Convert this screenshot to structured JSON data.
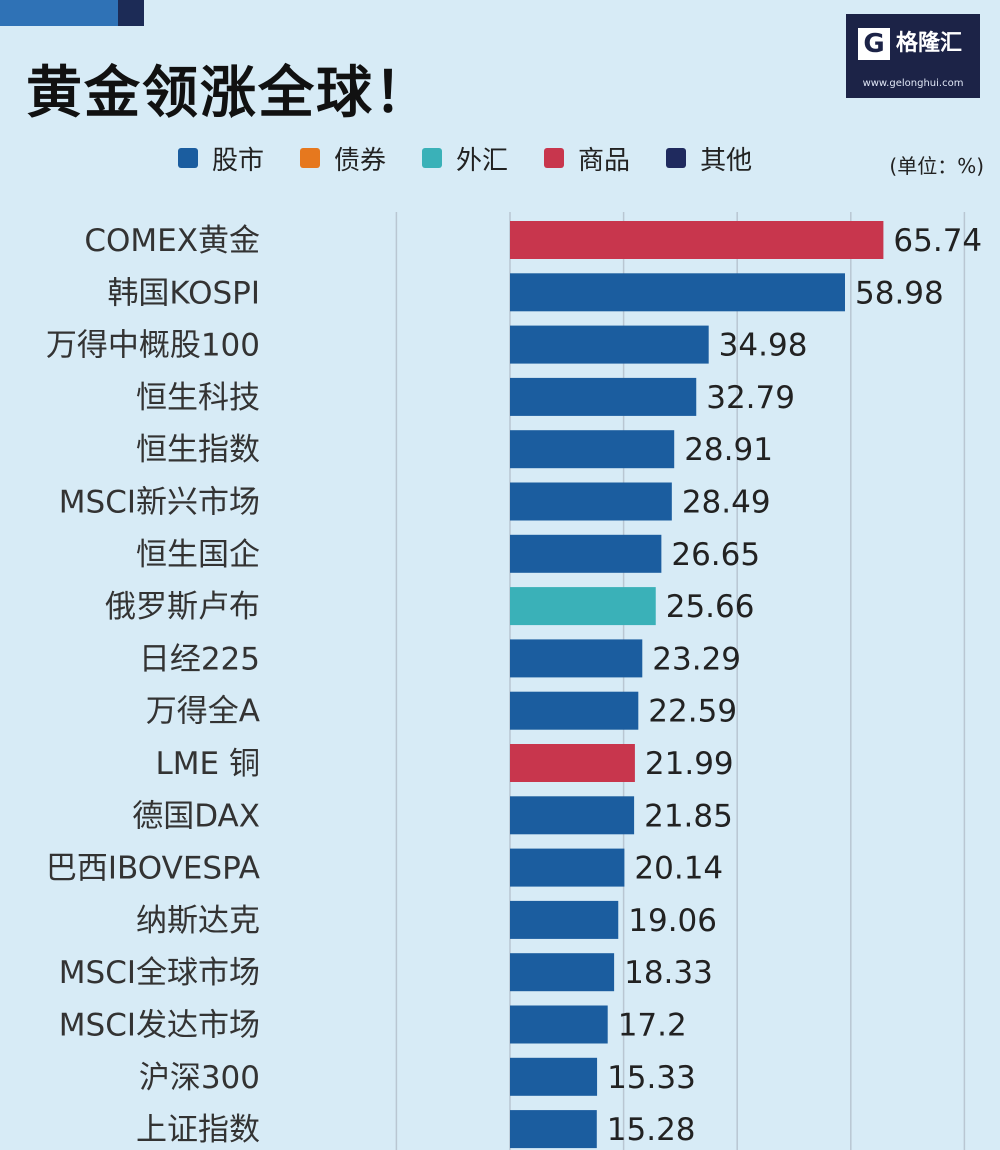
{
  "title": "黄金领涨全球！",
  "logo": {
    "mark": "G",
    "name": "格隆汇",
    "url": "www.gelonghui.com"
  },
  "unit": "(单位：%)",
  "colors": {
    "股市": "#1b5d9f",
    "债券": "#e6781e",
    "外汇": "#3ab1b8",
    "商品": "#c8364d",
    "其他": "#1f2a5e"
  },
  "legend": [
    {
      "label": "股市",
      "color": "#1b5d9f"
    },
    {
      "label": "债券",
      "color": "#e6781e"
    },
    {
      "label": "外汇",
      "color": "#3ab1b8"
    },
    {
      "label": "商品",
      "color": "#c8364d"
    },
    {
      "label": "其他",
      "color": "#1f2a5e"
    }
  ],
  "chart_data": {
    "type": "bar",
    "orientation": "horizontal",
    "title": "黄金领涨全球！",
    "unit": "%",
    "categories": [
      "COMEX黄金",
      "韩国KOSPI",
      "万得中概股100",
      "恒生科技",
      "恒生指数",
      "MSCI新兴市场",
      "恒生国企",
      "俄罗斯卢布",
      "日经225",
      "万得全A",
      "LME 铜",
      "德国DAX",
      "巴西IBOVESPA",
      "纳斯达克",
      "MSCI全球市场",
      "MSCI发达市场",
      "沪深300",
      "上证指数"
    ],
    "values": [
      65.74,
      58.98,
      34.98,
      32.79,
      28.91,
      28.49,
      26.65,
      25.66,
      23.29,
      22.59,
      21.99,
      21.85,
      20.14,
      19.06,
      18.33,
      17.2,
      15.33,
      15.28
    ],
    "value_labels": [
      "65.74",
      "58.98",
      "34.98",
      "32.79",
      "28.91",
      "28.49",
      "26.65",
      "25.66",
      "23.29",
      "22.59",
      "21.99",
      "21.85",
      "20.14",
      "19.06",
      "18.33",
      "17.2",
      "15.33",
      "15.28"
    ],
    "classes": [
      "商品",
      "股市",
      "股市",
      "股市",
      "股市",
      "股市",
      "股市",
      "外汇",
      "股市",
      "股市",
      "商品",
      "股市",
      "股市",
      "股市",
      "股市",
      "股市",
      "股市",
      "股市"
    ],
    "xlim": [
      -20,
      80
    ],
    "grid": true,
    "legend_position": "top"
  }
}
